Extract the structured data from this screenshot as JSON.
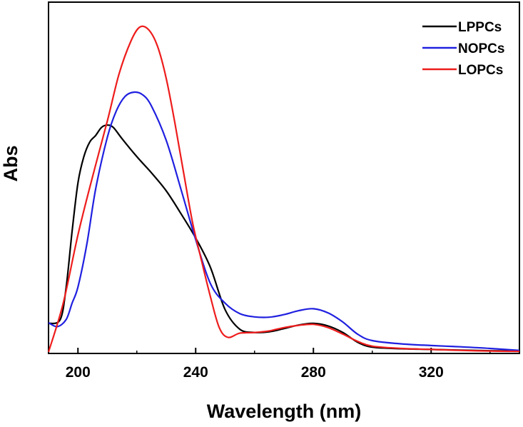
{
  "chart_data": {
    "type": "line",
    "title": "",
    "xlabel": "Wavelength (nm)",
    "ylabel": "Abs",
    "xlim": [
      190,
      350
    ],
    "ylim": [
      0,
      1
    ],
    "x_ticks": [
      200,
      240,
      280,
      320
    ],
    "x_tick_labels": [
      "200",
      "240",
      "280",
      "320"
    ],
    "y_ticks_shown": false,
    "grid": false,
    "legend_position": "top-right",
    "series": [
      {
        "name": "LPPCs",
        "color": "#000000",
        "points": [
          [
            190,
            0.088
          ],
          [
            194,
            0.1
          ],
          [
            196,
            0.2
          ],
          [
            198,
            0.37
          ],
          [
            200,
            0.52
          ],
          [
            202,
            0.6
          ],
          [
            204,
            0.645
          ],
          [
            206,
            0.665
          ],
          [
            208,
            0.69
          ],
          [
            210,
            0.697
          ],
          [
            212,
            0.69
          ],
          [
            215,
            0.655
          ],
          [
            220,
            0.6
          ],
          [
            225,
            0.55
          ],
          [
            230,
            0.495
          ],
          [
            235,
            0.425
          ],
          [
            240,
            0.35
          ],
          [
            245,
            0.26
          ],
          [
            250,
            0.13
          ],
          [
            255,
            0.07
          ],
          [
            260,
            0.06
          ],
          [
            265,
            0.062
          ],
          [
            270,
            0.072
          ],
          [
            275,
            0.083
          ],
          [
            280,
            0.088
          ],
          [
            285,
            0.08
          ],
          [
            290,
            0.06
          ],
          [
            295,
            0.03
          ],
          [
            300,
            0.015
          ],
          [
            310,
            0.01
          ],
          [
            320,
            0.008
          ],
          [
            330,
            0.006
          ],
          [
            340,
            0.004
          ],
          [
            350,
            0.003
          ]
        ]
      },
      {
        "name": "NOPCs",
        "color": "#2020e0",
        "points": [
          [
            190,
            0.09
          ],
          [
            193,
            0.078
          ],
          [
            196,
            0.1
          ],
          [
            198,
            0.15
          ],
          [
            200,
            0.2
          ],
          [
            203,
            0.33
          ],
          [
            206,
            0.5
          ],
          [
            210,
            0.66
          ],
          [
            213,
            0.74
          ],
          [
            216,
            0.785
          ],
          [
            219,
            0.798
          ],
          [
            222,
            0.79
          ],
          [
            225,
            0.755
          ],
          [
            230,
            0.65
          ],
          [
            235,
            0.5
          ],
          [
            240,
            0.345
          ],
          [
            245,
            0.21
          ],
          [
            250,
            0.15
          ],
          [
            255,
            0.118
          ],
          [
            260,
            0.108
          ],
          [
            265,
            0.107
          ],
          [
            270,
            0.115
          ],
          [
            275,
            0.127
          ],
          [
            280,
            0.133
          ],
          [
            285,
            0.12
          ],
          [
            290,
            0.092
          ],
          [
            295,
            0.055
          ],
          [
            300,
            0.035
          ],
          [
            310,
            0.025
          ],
          [
            320,
            0.02
          ],
          [
            330,
            0.016
          ],
          [
            340,
            0.011
          ],
          [
            350,
            0.005
          ]
        ]
      },
      {
        "name": "LOPCs",
        "color": "#ee1c1c",
        "points": [
          [
            190,
            0.0
          ],
          [
            195,
            0.15
          ],
          [
            200,
            0.36
          ],
          [
            205,
            0.54
          ],
          [
            210,
            0.71
          ],
          [
            214,
            0.855
          ],
          [
            218,
            0.955
          ],
          [
            221,
            0.998
          ],
          [
            224,
            0.99
          ],
          [
            227,
            0.94
          ],
          [
            230,
            0.84
          ],
          [
            233,
            0.7
          ],
          [
            236,
            0.545
          ],
          [
            239,
            0.395
          ],
          [
            242,
            0.28
          ],
          [
            245,
            0.17
          ],
          [
            248,
            0.075
          ],
          [
            251,
            0.045
          ],
          [
            255,
            0.058
          ],
          [
            260,
            0.06
          ],
          [
            265,
            0.065
          ],
          [
            270,
            0.075
          ],
          [
            275,
            0.082
          ],
          [
            280,
            0.085
          ],
          [
            285,
            0.075
          ],
          [
            290,
            0.055
          ],
          [
            295,
            0.033
          ],
          [
            300,
            0.018
          ],
          [
            310,
            0.011
          ],
          [
            320,
            0.008
          ],
          [
            330,
            0.005
          ],
          [
            340,
            0.003
          ],
          [
            350,
            0.002
          ]
        ]
      }
    ]
  }
}
